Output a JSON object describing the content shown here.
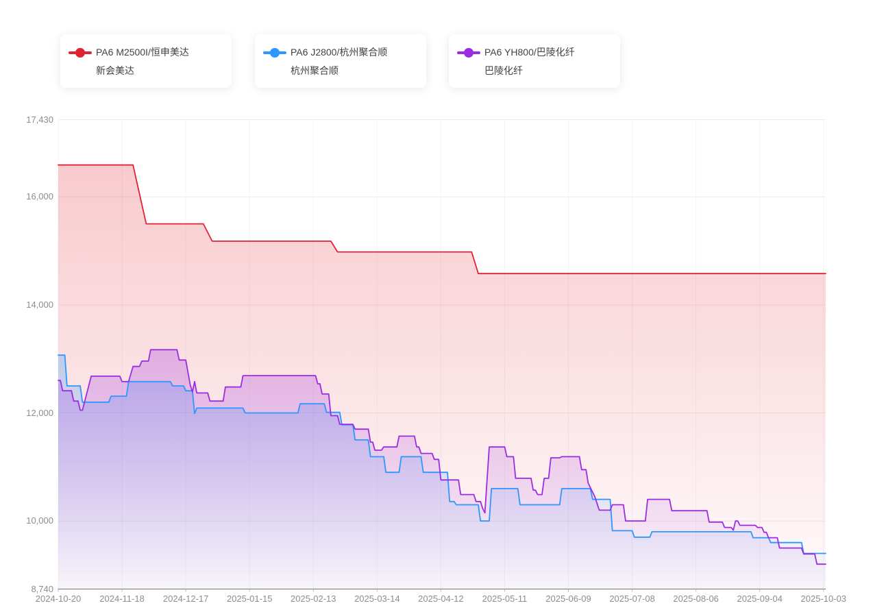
{
  "legend": {
    "cards": [
      {
        "label_line1": "PA6 M2500I/恒申美达",
        "label_line2": "新会美达",
        "color": "#e02333"
      },
      {
        "label_line1": "PA6 J2800/杭州聚合顺",
        "label_line2": "杭州聚合顺",
        "color": "#2b97ff"
      },
      {
        "label_line1": "PA6 YH800/巴陵化纤",
        "label_line2": "巴陵化纤",
        "color": "#9a2de2"
      }
    ]
  },
  "chart_data": {
    "type": "area",
    "subtype": "step-line area chart, daily price series",
    "title": "",
    "xlabel": "",
    "ylabel": "",
    "grid": true,
    "legend_position": "top",
    "x_axis": {
      "type": "date",
      "start": "2024-10-20",
      "end": "2025-10-04",
      "tick_labels": [
        "2024-10-20",
        "2024-11-18",
        "2024-12-17",
        "2025-01-15",
        "2025-02-13",
        "2025-03-14",
        "2025-04-12",
        "2025-05-11",
        "2025-06-09",
        "2025-07-08",
        "2025-08-06",
        "2025-09-04",
        "2025-10-03"
      ]
    },
    "y_axis": {
      "min": 8740,
      "max": 17430,
      "tick_values": [
        8740,
        10000,
        12000,
        14000,
        16000,
        17430
      ],
      "tick_labels": [
        "8,740",
        "10,000",
        "12,000",
        "14,000",
        "16,000",
        "17,430"
      ]
    },
    "series": [
      {
        "name": "PA6 M2500I/恒申美达 新会美达",
        "color": "#e02333",
        "points": [
          [
            "2024-10-20",
            16590
          ],
          [
            "2024-11-23",
            16590
          ],
          [
            "2024-11-29",
            15500
          ],
          [
            "2024-12-25",
            15500
          ],
          [
            "2024-12-29",
            15180
          ],
          [
            "2025-02-21",
            15180
          ],
          [
            "2025-02-24",
            14980
          ],
          [
            "2025-04-26",
            14980
          ],
          [
            "2025-04-29",
            14580
          ],
          [
            "2025-10-04",
            14580
          ]
        ]
      },
      {
        "name": "PA6 J2800/杭州聚合顺 杭州聚合顺",
        "color": "#2b97ff",
        "points": [
          [
            "2024-10-20",
            13070
          ],
          [
            "2024-10-23",
            13070
          ],
          [
            "2024-10-24",
            12500
          ],
          [
            "2024-10-30",
            12500
          ],
          [
            "2024-10-31",
            12200
          ],
          [
            "2024-11-12",
            12200
          ],
          [
            "2024-11-13",
            12310
          ],
          [
            "2024-11-20",
            12310
          ],
          [
            "2024-11-21",
            12580
          ],
          [
            "2024-12-10",
            12580
          ],
          [
            "2024-12-11",
            12500
          ],
          [
            "2024-12-16",
            12500
          ],
          [
            "2024-12-17",
            12410
          ],
          [
            "2024-12-20",
            12410
          ],
          [
            "2024-12-21",
            11990
          ],
          [
            "2024-12-22",
            12090
          ],
          [
            "2025-01-12",
            12090
          ],
          [
            "2025-01-13",
            12000
          ],
          [
            "2025-02-06",
            12000
          ],
          [
            "2025-02-07",
            12170
          ],
          [
            "2025-02-18",
            12170
          ],
          [
            "2025-02-19",
            12010
          ],
          [
            "2025-02-25",
            12010
          ],
          [
            "2025-02-26",
            11780
          ],
          [
            "2025-03-03",
            11780
          ],
          [
            "2025-03-04",
            11500
          ],
          [
            "2025-03-10",
            11500
          ],
          [
            "2025-03-11",
            11190
          ],
          [
            "2025-03-17",
            11190
          ],
          [
            "2025-03-18",
            10900
          ],
          [
            "2025-03-24",
            10900
          ],
          [
            "2025-03-25",
            11190
          ],
          [
            "2025-04-03",
            11190
          ],
          [
            "2025-04-04",
            10900
          ],
          [
            "2025-04-15",
            10900
          ],
          [
            "2025-04-16",
            10360
          ],
          [
            "2025-04-18",
            10360
          ],
          [
            "2025-04-19",
            10300
          ],
          [
            "2025-04-29",
            10300
          ],
          [
            "2025-04-30",
            10000
          ],
          [
            "2025-05-04",
            10000
          ],
          [
            "2025-05-05",
            10600
          ],
          [
            "2025-05-17",
            10600
          ],
          [
            "2025-05-18",
            10300
          ],
          [
            "2025-06-05",
            10300
          ],
          [
            "2025-06-06",
            10600
          ],
          [
            "2025-06-19",
            10600
          ],
          [
            "2025-06-20",
            10400
          ],
          [
            "2025-06-28",
            10400
          ],
          [
            "2025-06-29",
            9820
          ],
          [
            "2025-07-08",
            9820
          ],
          [
            "2025-07-09",
            9700
          ],
          [
            "2025-07-16",
            9700
          ],
          [
            "2025-07-17",
            9800
          ],
          [
            "2025-08-31",
            9800
          ],
          [
            "2025-09-01",
            9690
          ],
          [
            "2025-09-08",
            9690
          ],
          [
            "2025-09-09",
            9600
          ],
          [
            "2025-09-23",
            9600
          ],
          [
            "2025-09-24",
            9400
          ],
          [
            "2025-10-04",
            9400
          ]
        ]
      },
      {
        "name": "PA6 YH800/巴陵化纤 巴陵化纤",
        "color": "#9a2de2",
        "points": [
          [
            "2024-10-20",
            12600
          ],
          [
            "2024-10-21",
            12600
          ],
          [
            "2024-10-22",
            12410
          ],
          [
            "2024-10-26",
            12410
          ],
          [
            "2024-10-27",
            12220
          ],
          [
            "2024-10-29",
            12220
          ],
          [
            "2024-10-30",
            12050
          ],
          [
            "2024-10-31",
            12050
          ],
          [
            "2024-11-04",
            12680
          ],
          [
            "2024-11-17",
            12680
          ],
          [
            "2024-11-18",
            12580
          ],
          [
            "2024-11-21",
            12580
          ],
          [
            "2024-11-23",
            12860
          ],
          [
            "2024-11-26",
            12860
          ],
          [
            "2024-11-27",
            12960
          ],
          [
            "2024-11-30",
            12960
          ],
          [
            "2024-12-01",
            13170
          ],
          [
            "2024-12-13",
            13170
          ],
          [
            "2024-12-14",
            12980
          ],
          [
            "2024-12-17",
            12980
          ],
          [
            "2024-12-19",
            12520
          ],
          [
            "2024-12-20",
            12390
          ],
          [
            "2024-12-21",
            12580
          ],
          [
            "2024-12-22",
            12370
          ],
          [
            "2024-12-27",
            12370
          ],
          [
            "2024-12-28",
            12220
          ],
          [
            "2025-01-03",
            12220
          ],
          [
            "2025-01-04",
            12480
          ],
          [
            "2025-01-11",
            12480
          ],
          [
            "2025-01-12",
            12690
          ],
          [
            "2025-02-14",
            12690
          ],
          [
            "2025-02-15",
            12540
          ],
          [
            "2025-02-16",
            12540
          ],
          [
            "2025-02-17",
            12350
          ],
          [
            "2025-02-20",
            12350
          ],
          [
            "2025-02-21",
            11950
          ],
          [
            "2025-02-24",
            11950
          ],
          [
            "2025-02-25",
            11790
          ],
          [
            "2025-03-03",
            11790
          ],
          [
            "2025-03-04",
            11700
          ],
          [
            "2025-03-10",
            11700
          ],
          [
            "2025-03-11",
            11460
          ],
          [
            "2025-03-12",
            11460
          ],
          [
            "2025-03-13",
            11310
          ],
          [
            "2025-03-16",
            11310
          ],
          [
            "2025-03-17",
            11370
          ],
          [
            "2025-03-23",
            11370
          ],
          [
            "2025-03-24",
            11570
          ],
          [
            "2025-03-31",
            11570
          ],
          [
            "2025-04-01",
            11370
          ],
          [
            "2025-04-02",
            11370
          ],
          [
            "2025-04-03",
            11250
          ],
          [
            "2025-04-08",
            11250
          ],
          [
            "2025-04-09",
            11140
          ],
          [
            "2025-04-11",
            11140
          ],
          [
            "2025-04-12",
            10760
          ],
          [
            "2025-04-20",
            10760
          ],
          [
            "2025-04-21",
            10490
          ],
          [
            "2025-04-27",
            10490
          ],
          [
            "2025-04-28",
            10360
          ],
          [
            "2025-04-30",
            10360
          ],
          [
            "2025-05-01",
            10230
          ],
          [
            "2025-05-02",
            10150
          ],
          [
            "2025-05-04",
            11370
          ],
          [
            "2025-05-11",
            11370
          ],
          [
            "2025-05-12",
            11190
          ],
          [
            "2025-05-15",
            11190
          ],
          [
            "2025-05-16",
            10790
          ],
          [
            "2025-05-23",
            10790
          ],
          [
            "2025-05-24",
            10570
          ],
          [
            "2025-05-25",
            10570
          ],
          [
            "2025-05-26",
            10490
          ],
          [
            "2025-05-28",
            10490
          ],
          [
            "2025-05-29",
            10790
          ],
          [
            "2025-05-31",
            10790
          ],
          [
            "2025-06-01",
            11170
          ],
          [
            "2025-06-05",
            11170
          ],
          [
            "2025-06-06",
            11190
          ],
          [
            "2025-06-14",
            11190
          ],
          [
            "2025-06-15",
            10950
          ],
          [
            "2025-06-17",
            10950
          ],
          [
            "2025-06-18",
            10700
          ],
          [
            "2025-06-21",
            10450
          ],
          [
            "2025-06-23",
            10200
          ],
          [
            "2025-06-28",
            10200
          ],
          [
            "2025-06-29",
            10300
          ],
          [
            "2025-07-04",
            10300
          ],
          [
            "2025-07-05",
            10000
          ],
          [
            "2025-07-14",
            10000
          ],
          [
            "2025-07-15",
            10400
          ],
          [
            "2025-07-25",
            10400
          ],
          [
            "2025-07-26",
            10190
          ],
          [
            "2025-08-11",
            10190
          ],
          [
            "2025-08-12",
            9980
          ],
          [
            "2025-08-18",
            9980
          ],
          [
            "2025-08-19",
            9880
          ],
          [
            "2025-08-22",
            9880
          ],
          [
            "2025-08-23",
            9830
          ],
          [
            "2025-08-24",
            10000
          ],
          [
            "2025-08-25",
            10000
          ],
          [
            "2025-08-26",
            9920
          ],
          [
            "2025-09-02",
            9920
          ],
          [
            "2025-09-03",
            9880
          ],
          [
            "2025-09-05",
            9880
          ],
          [
            "2025-09-06",
            9790
          ],
          [
            "2025-09-07",
            9790
          ],
          [
            "2025-09-08",
            9690
          ],
          [
            "2025-09-12",
            9690
          ],
          [
            "2025-09-13",
            9500
          ],
          [
            "2025-09-23",
            9500
          ],
          [
            "2025-09-24",
            9390
          ],
          [
            "2025-09-29",
            9390
          ],
          [
            "2025-09-30",
            9200
          ],
          [
            "2025-10-04",
            9200
          ]
        ]
      }
    ],
    "colors": {
      "grid_line_h": "#ececec",
      "grid_line_v": "#f3f3f3",
      "axis_line": "#707070",
      "axis_label": "#8c8c8c"
    }
  }
}
